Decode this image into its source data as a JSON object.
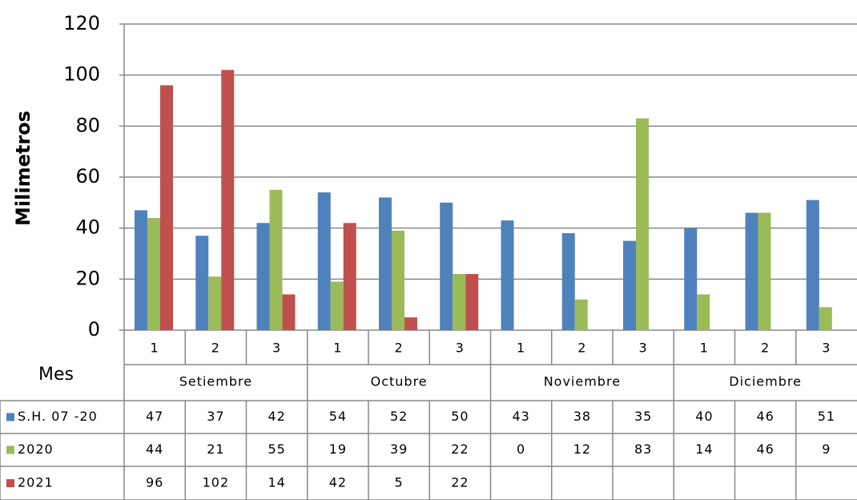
{
  "chart_data": {
    "type": "bar",
    "y_label": "Milimetros",
    "x_label": "Mes",
    "categories": [
      "1",
      "2",
      "3",
      "1",
      "2",
      "3",
      "1",
      "2",
      "3",
      "1",
      "2",
      "3"
    ],
    "category_groups": [
      "Setiembre",
      "Octubre",
      "Noviembre",
      "Diciembre"
    ],
    "series": [
      {
        "name": "S.H. 07 -20",
        "color": "#4f81bd",
        "values": [
          47,
          37,
          42,
          54,
          52,
          50,
          43,
          38,
          35,
          40,
          46,
          51
        ]
      },
      {
        "name": "2020",
        "color": "#9bbb59",
        "values": [
          44,
          21,
          55,
          19,
          39,
          22,
          0,
          12,
          83,
          14,
          46,
          9
        ]
      },
      {
        "name": "2021",
        "color": "#c0504d",
        "values": [
          96,
          102,
          14,
          42,
          5,
          22,
          null,
          null,
          null,
          null,
          null,
          null
        ]
      }
    ],
    "ylim": [
      0,
      120
    ],
    "yticks": [
      0,
      20,
      40,
      60,
      80,
      100,
      120
    ],
    "grid": true
  }
}
